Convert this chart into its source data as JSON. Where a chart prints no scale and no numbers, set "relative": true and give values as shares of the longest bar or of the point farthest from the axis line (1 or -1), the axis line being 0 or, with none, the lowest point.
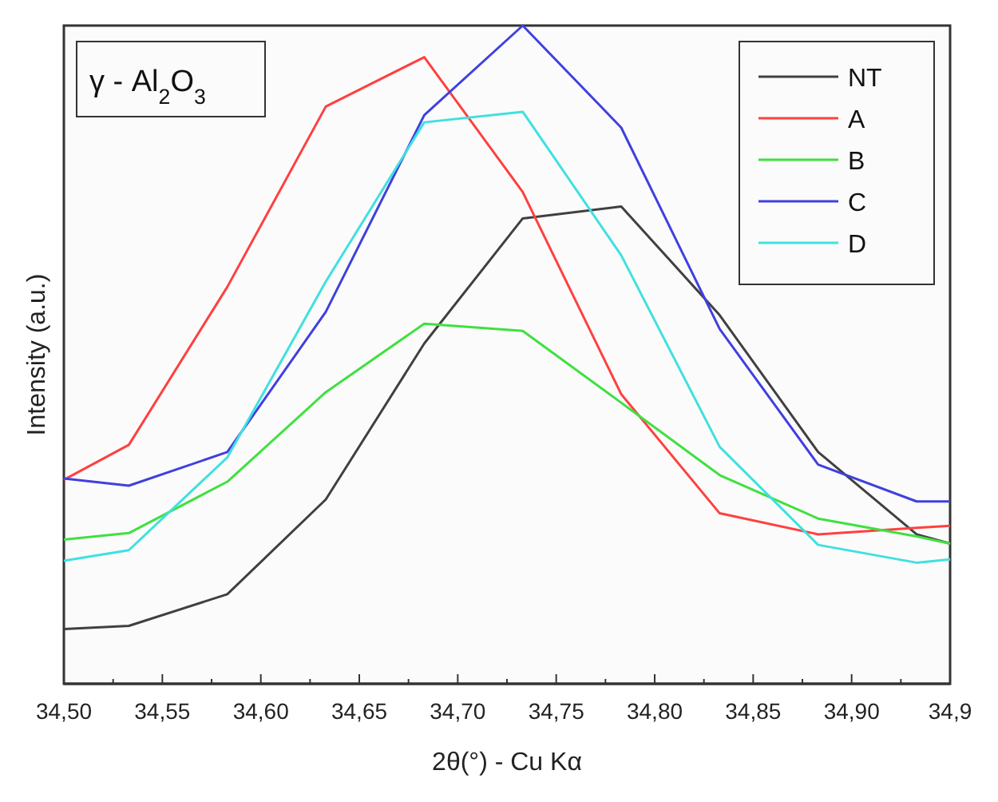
{
  "chart_data": {
    "type": "line",
    "title": "γ - Al$_{2}$O$_{3}$",
    "xlabel": "2θ(°) - Cu Kα",
    "ylabel": "Intensity (a.u.)",
    "relative": true,
    "x": [
      34.5,
      34.533,
      34.583,
      34.633,
      34.683,
      34.733,
      34.783,
      34.833,
      34.883,
      34.933,
      34.95
    ],
    "xlim": [
      34.5,
      34.95
    ],
    "xticks": [
      {
        "value": 34.5,
        "label": "34,50"
      },
      {
        "value": 34.55,
        "label": "34,55"
      },
      {
        "value": 34.6,
        "label": "34,60"
      },
      {
        "value": 34.65,
        "label": "34,65"
      },
      {
        "value": 34.7,
        "label": "34,70"
      },
      {
        "value": 34.75,
        "label": "34,75"
      },
      {
        "value": 34.8,
        "label": "34,80"
      },
      {
        "value": 34.85,
        "label": "34,85"
      },
      {
        "value": 34.9,
        "label": "34,90"
      },
      {
        "value": 34.95,
        "label": "34,9"
      }
    ],
    "series": [
      {
        "name": "NT",
        "color": "#404040",
        "values": [
          0.083,
          0.088,
          0.136,
          0.28,
          0.517,
          0.707,
          0.725,
          0.56,
          0.352,
          0.227,
          0.213
        ]
      },
      {
        "name": "A",
        "color": "#ff4040",
        "values": [
          0.31,
          0.363,
          0.603,
          0.877,
          0.952,
          0.747,
          0.44,
          0.259,
          0.227,
          0.237,
          0.24
        ]
      },
      {
        "name": "B",
        "color": "#40e040",
        "values": [
          0.219,
          0.229,
          0.307,
          0.443,
          0.547,
          0.536,
          0.427,
          0.317,
          0.251,
          0.224,
          0.213
        ]
      },
      {
        "name": "C",
        "color": "#4040e0",
        "values": [
          0.312,
          0.301,
          0.352,
          0.565,
          0.864,
          1,
          0.845,
          0.539,
          0.333,
          0.277,
          0.277
        ]
      },
      {
        "name": "D",
        "color": "#40e0e0",
        "values": [
          0.187,
          0.203,
          0.344,
          0.611,
          0.853,
          0.869,
          0.651,
          0.36,
          0.211,
          0.184,
          0.189
        ]
      }
    ],
    "legend": "top right",
    "grid": false,
    "marker": "none",
    "line_style": "solid"
  }
}
